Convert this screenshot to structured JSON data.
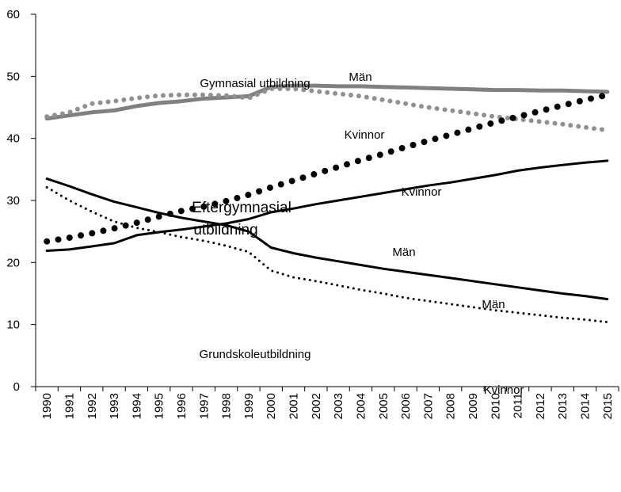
{
  "chart_data": {
    "type": "line",
    "categories": [
      "1990",
      "1991",
      "1992",
      "1993",
      "1994",
      "1995",
      "1996",
      "1997",
      "1998",
      "1999",
      "2000",
      "2001",
      "2002",
      "2003",
      "2004",
      "2005",
      "2006",
      "2007",
      "2008",
      "2009",
      "2010",
      "2011",
      "2012",
      "2013",
      "2014",
      "2015"
    ],
    "series": [
      {
        "name": "Män",
        "color": "#808080",
        "dash": "solid",
        "values": [
          43.2,
          43.7,
          44.2,
          44.5,
          45.2,
          45.7,
          46.0,
          46.4,
          46.6,
          46.8,
          48.3,
          48.5,
          48.5,
          48.4,
          48.4,
          48.3,
          48.2,
          48.1,
          48.0,
          47.9,
          47.8,
          47.8,
          47.7,
          47.7,
          47.6,
          47.5
        ]
      },
      {
        "name": "Kvinnor",
        "color": "#909090",
        "dash": "dotted",
        "values": [
          43.5,
          44.2,
          45.6,
          46.0,
          46.5,
          46.9,
          47.0,
          47.0,
          46.9,
          46.5,
          48.0,
          48.0,
          47.6,
          47.2,
          46.8,
          46.2,
          45.6,
          45.0,
          44.5,
          44.0,
          43.5,
          43.1,
          42.7,
          42.3,
          41.8,
          41.3
        ]
      },
      {
        "name": "Kvinnor",
        "color": "#000000",
        "dash": "dots",
        "values": [
          23.4,
          24.0,
          24.7,
          25.5,
          26.4,
          27.4,
          28.3,
          29.0,
          29.9,
          30.9,
          32.1,
          33.2,
          34.3,
          35.4,
          36.5,
          37.5,
          38.6,
          39.6,
          40.6,
          41.6,
          42.6,
          43.5,
          44.4,
          45.3,
          46.2,
          47.0
        ]
      },
      {
        "name": "Män",
        "color": "#000000",
        "dash": "solid",
        "values": [
          21.9,
          22.1,
          22.6,
          23.1,
          24.4,
          24.9,
          25.3,
          25.8,
          26.3,
          27.0,
          28.1,
          28.7,
          29.4,
          30.0,
          30.6,
          31.2,
          31.8,
          32.4,
          32.9,
          33.5,
          34.1,
          34.8,
          35.3,
          35.7,
          36.1,
          36.4
        ]
      },
      {
        "name": "Män",
        "color": "#000000",
        "dash": "solid",
        "values": [
          33.5,
          32.3,
          31.0,
          29.8,
          28.9,
          28.0,
          27.2,
          26.6,
          26.0,
          25.0,
          22.4,
          21.5,
          20.8,
          20.2,
          19.6,
          19.0,
          18.5,
          18.0,
          17.5,
          17.0,
          16.5,
          16.0,
          15.5,
          15.0,
          14.6,
          14.1
        ]
      },
      {
        "name": "Kvinnor",
        "color": "#000000",
        "dash": "dotted",
        "values": [
          32.1,
          30.0,
          28.2,
          26.6,
          25.6,
          24.9,
          24.1,
          23.5,
          22.7,
          21.7,
          18.7,
          17.6,
          17.0,
          16.3,
          15.6,
          15.0,
          14.3,
          13.8,
          13.3,
          12.8,
          12.3,
          11.9,
          11.5,
          11.1,
          10.8,
          10.4
        ]
      }
    ],
    "annotations": [
      "Gymnasial utbildning",
      "Eftergymnasial",
      "utbildning",
      "Grundskoleutbildning"
    ],
    "ylim": [
      0,
      60
    ],
    "yticks": [
      0,
      10,
      20,
      30,
      40,
      50,
      60
    ],
    "grid": false
  }
}
